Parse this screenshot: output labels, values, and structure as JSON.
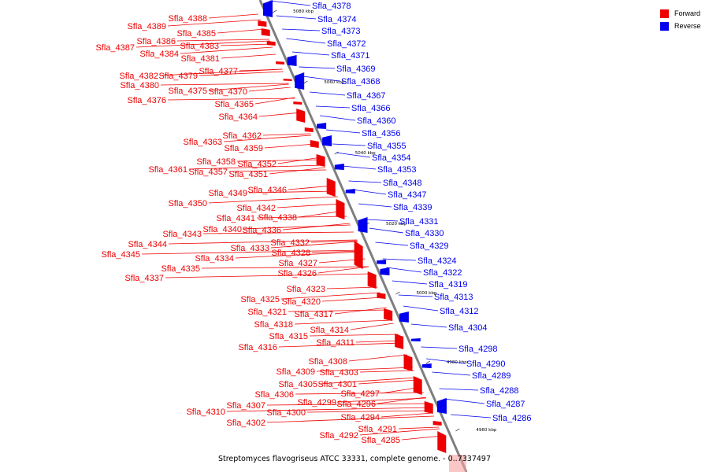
{
  "legend": {
    "forward": {
      "label": "Forward",
      "color": "#ee0000"
    },
    "reverse": {
      "label": "Reverse",
      "color": "#0000ee"
    }
  },
  "caption": "Streptomyces flavogriseus ATCC 33331, complete genome. - 0..7337497",
  "axis_color": "#7f7f7f",
  "coordinate_ticks": [
    "5080 kbp",
    "5060 kbp",
    "5040 kbp",
    "5020 kbp",
    "5000 kbp",
    "4980 kbp",
    "4960 kbp"
  ],
  "forward_genes": [
    "Sfla_4389",
    "Sfla_4388",
    "Sfla_4386",
    "Sfla_4387",
    "Sfla_4385",
    "Sfla_4383",
    "Sfla_4384",
    "Sfla_4381",
    "Sfla_4377",
    "Sfla_4382",
    "Sfla_4379",
    "Sfla_4380",
    "Sfla_4375",
    "Sfla_4370",
    "Sfla_4376",
    "Sfla_4365",
    "Sfla_4364",
    "Sfla_4362",
    "Sfla_4363",
    "Sfla_4359",
    "Sfla_4358",
    "Sfla_4352",
    "Sfla_4361",
    "Sfla_4357",
    "Sfla_4351",
    "Sfla_4346",
    "Sfla_4349",
    "Sfla_4350",
    "Sfla_4342",
    "Sfla_4341",
    "Sfla_4338",
    "Sfla_4340",
    "Sfla_4343",
    "Sfla_4336",
    "Sfla_4344",
    "Sfla_4332",
    "Sfla_4333",
    "Sfla_4345",
    "Sfla_4328",
    "Sfla_4334",
    "Sfla_4327",
    "Sfla_4335",
    "Sfla_4326",
    "Sfla_4337",
    "Sfla_4323",
    "Sfla_4325",
    "Sfla_4320",
    "Sfla_4321",
    "Sfla_4317",
    "Sfla_4318",
    "Sfla_4315",
    "Sfla_4314",
    "Sfla_4316",
    "Sfla_4311",
    "Sfla_4308",
    "Sfla_4309",
    "Sfla_4303",
    "Sfla_4305",
    "Sfla_4301",
    "Sfla_4306",
    "Sfla_4297",
    "Sfla_4299",
    "Sfla_4307",
    "Sfla_4296",
    "Sfla_4310",
    "Sfla_4300",
    "Sfla_4302",
    "Sfla_4294",
    "Sfla_4291",
    "Sfla_4292",
    "Sfla_4285"
  ],
  "reverse_genes": [
    "Sfla_4378",
    "Sfla_4374",
    "Sfla_4373",
    "Sfla_4372",
    "Sfla_4371",
    "Sfla_4369",
    "Sfla_4368",
    "Sfla_4367",
    "Sfla_4366",
    "Sfla_4360",
    "Sfla_4356",
    "Sfla_4355",
    "Sfla_4354",
    "Sfla_4353",
    "Sfla_4348",
    "Sfla_4347",
    "Sfla_4339",
    "Sfla_4331",
    "Sfla_4330",
    "Sfla_4329",
    "Sfla_4324",
    "Sfla_4322",
    "Sfla_4319",
    "Sfla_4313",
    "Sfla_4312",
    "Sfla_4304",
    "Sfla_4298",
    "Sfla_4290",
    "Sfla_4289",
    "Sfla_4288",
    "Sfla_4287",
    "Sfla_4286"
  ]
}
